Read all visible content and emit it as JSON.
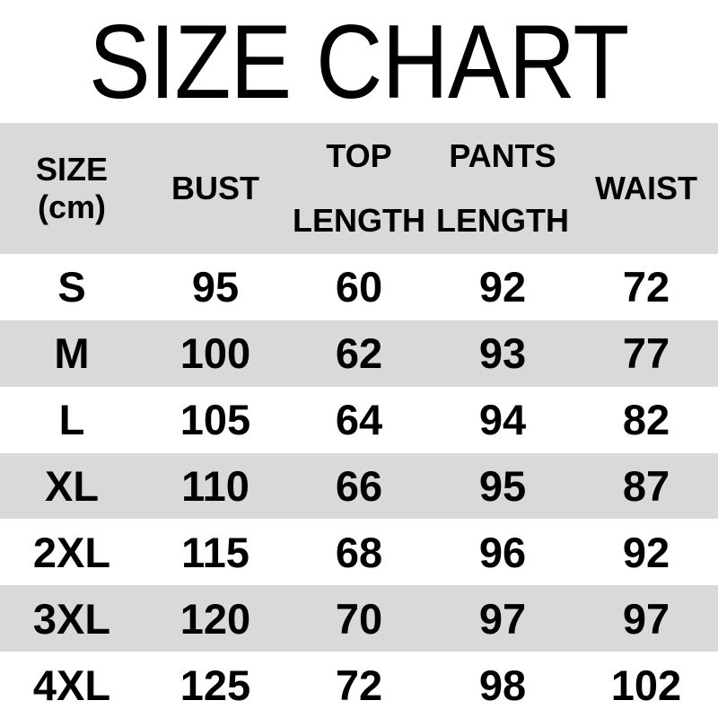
{
  "title": "SIZE CHART",
  "header": {
    "size_line1": "SIZE",
    "size_line2": "(cm)",
    "bust": "BUST",
    "top_line1": "TOP",
    "top_line2": "LENGTH",
    "pants_line1": "PANTS",
    "pants_line2": "LENGTH",
    "waist": "WAIST"
  },
  "rows": [
    {
      "size": "S",
      "bust": "95",
      "top_length": "60",
      "pants_length": "92",
      "waist": "72"
    },
    {
      "size": "M",
      "bust": "100",
      "top_length": "62",
      "pants_length": "93",
      "waist": "77"
    },
    {
      "size": "L",
      "bust": "105",
      "top_length": "64",
      "pants_length": "94",
      "waist": "82"
    },
    {
      "size": "XL",
      "bust": "110",
      "top_length": "66",
      "pants_length": "95",
      "waist": "87"
    },
    {
      "size": "2XL",
      "bust": "115",
      "top_length": "68",
      "pants_length": "96",
      "waist": "92"
    },
    {
      "size": "3XL",
      "bust": "120",
      "top_length": "70",
      "pants_length": "97",
      "waist": "97"
    },
    {
      "size": "4XL",
      "bust": "125",
      "top_length": "72",
      "pants_length": "98",
      "waist": "102"
    }
  ],
  "colors": {
    "row_alt_background": "#d9d9d9",
    "background": "#ffffff",
    "text": "#000000"
  },
  "chart_data": {
    "type": "table",
    "title": "SIZE CHART",
    "unit": "cm",
    "columns": [
      "SIZE (cm)",
      "BUST",
      "TOP LENGTH",
      "PANTS LENGTH",
      "WAIST"
    ],
    "rows": [
      [
        "S",
        95,
        60,
        92,
        72
      ],
      [
        "M",
        100,
        62,
        93,
        77
      ],
      [
        "L",
        105,
        64,
        94,
        82
      ],
      [
        "XL",
        110,
        66,
        95,
        87
      ],
      [
        "2XL",
        115,
        68,
        96,
        92
      ],
      [
        "3XL",
        120,
        70,
        97,
        97
      ],
      [
        "4XL",
        125,
        72,
        98,
        102
      ]
    ],
    "layout_hints": {
      "alternating_row_bands": true,
      "band_color": "#d9d9d9",
      "header_band": true,
      "grid": false,
      "borders": false
    }
  }
}
